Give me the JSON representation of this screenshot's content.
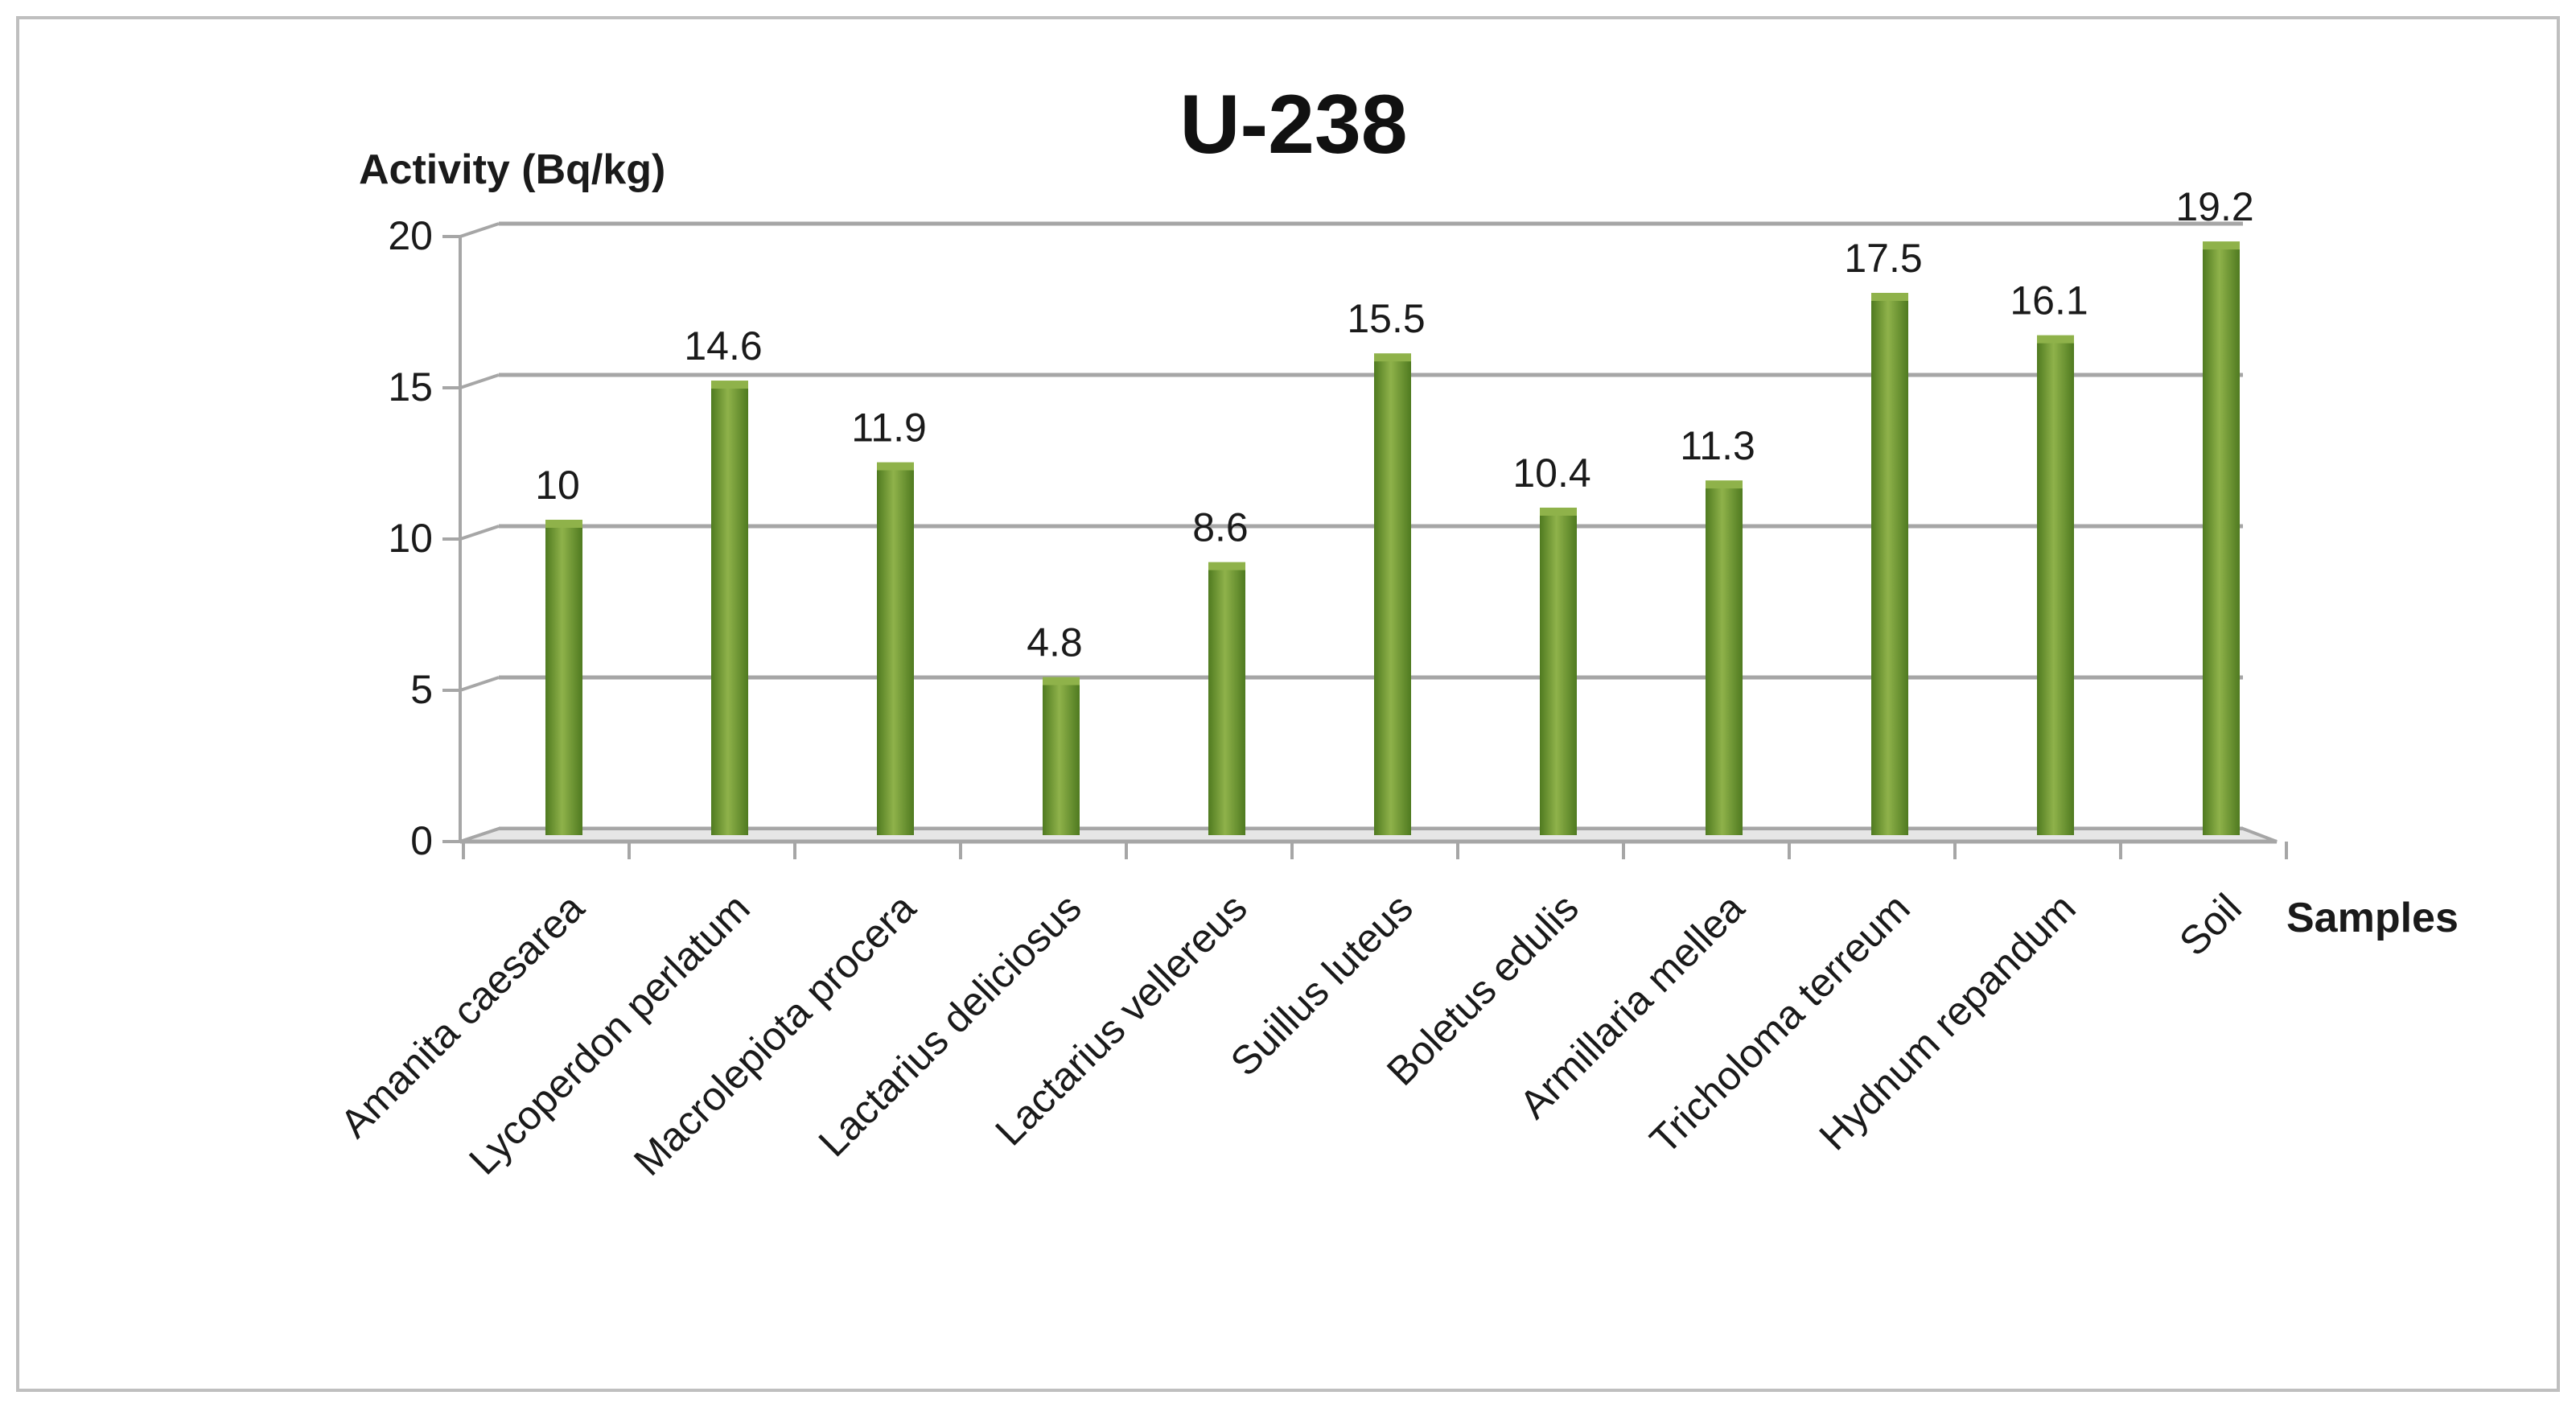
{
  "chart_data": {
    "type": "bar",
    "title": "U-238",
    "ylabel": "Activity (Bq/kg)",
    "xlabel": "Samples",
    "ylim": [
      0,
      20
    ],
    "yticks": [
      "0",
      "5",
      "10",
      "15",
      "20"
    ],
    "grid": true,
    "legend": "none",
    "categories": [
      "Amanita caesarea",
      "Lycoperdon perlatum",
      "Macrolepiota procera",
      "Lactarius deliciosus",
      "Lactarius vellereus",
      "Suillus luteus",
      "Boletus edulis",
      "Armillaria mellea",
      "Tricholoma terreum",
      "Hydnum repandum",
      "Soil"
    ],
    "values": [
      10,
      14.6,
      11.9,
      4.8,
      8.6,
      15.5,
      10.4,
      11.3,
      17.5,
      16.1,
      19.2
    ],
    "data_labels": [
      "10",
      "14.6",
      "11.9",
      "4.8",
      "8.6",
      "15.5",
      "10.4",
      "11.3",
      "17.5",
      "16.1",
      "19.2"
    ],
    "colors": {
      "bar_light": "#8fb24a",
      "bar_dark": "#4f7a20",
      "grid": "#a6a6a6",
      "frame": "#bfbfbf",
      "text": "#1a1a1a"
    }
  }
}
